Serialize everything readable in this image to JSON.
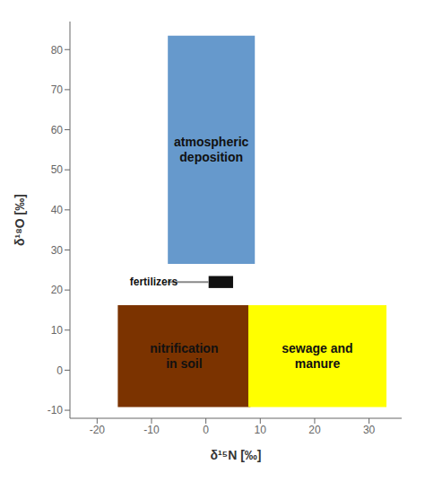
{
  "chart_data": {
    "type": "regions",
    "xlabel": "δ¹⁵N [‰]",
    "ylabel": "δ¹⁸O [‰]",
    "xlim": [
      -25,
      36
    ],
    "ylim": [
      -12,
      87
    ],
    "xticks": [
      -20,
      -10,
      0,
      10,
      20,
      30
    ],
    "yticks": [
      -10,
      0,
      10,
      20,
      30,
      40,
      50,
      60,
      70,
      80
    ],
    "grid": false,
    "regions": [
      {
        "name": "atmospheric\ndeposition",
        "x": [
          -7,
          9
        ],
        "y": [
          26.5,
          83.5
        ],
        "color": "#6699cc"
      },
      {
        "name": "nitrification\nin soil",
        "x": [
          -16.2,
          8.2
        ],
        "y": [
          -9.2,
          16.2
        ],
        "color": "#7B3300"
      },
      {
        "name": "sewage and\nmanure",
        "x": [
          7.8,
          33.2
        ],
        "y": [
          -9.2,
          16.2
        ],
        "color": "#FFFF00"
      }
    ],
    "annotations": [
      {
        "text": "fertilizers",
        "x": -14,
        "y": 22,
        "line": {
          "x": [
            -7,
            0.5
          ],
          "y": 22,
          "color": "#888888"
        },
        "box": {
          "x": [
            0.5,
            5
          ],
          "y": [
            20.5,
            23.5
          ],
          "color": "#111111"
        }
      }
    ]
  }
}
